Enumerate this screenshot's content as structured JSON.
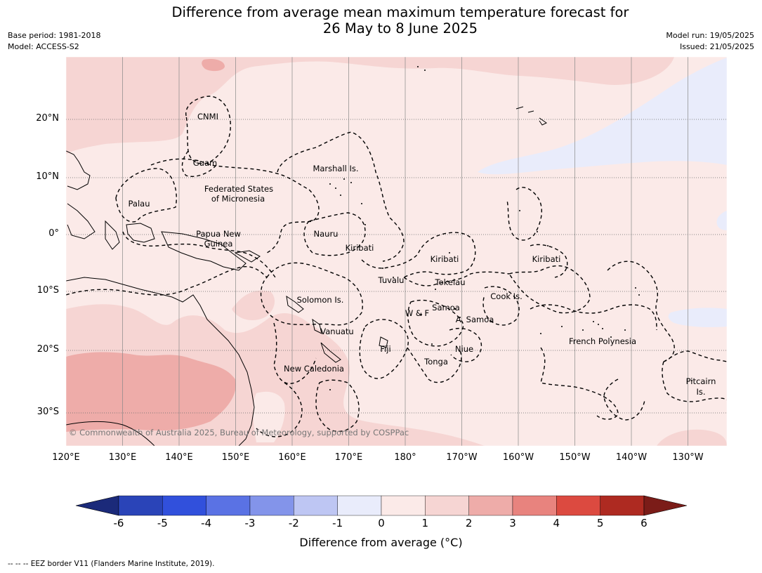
{
  "title": {
    "line1": "Difference from average mean maximum temperature forecast for",
    "line2": "26 May to 8 June 2025"
  },
  "meta_left": {
    "base_period": "Base period: 1981-2018",
    "model": "Model: ACCESS-S2"
  },
  "meta_right": {
    "model_run": "Model run: 19/05/2025",
    "issued": "Issued: 21/05/2025"
  },
  "map": {
    "lat_labels": [
      "20°N",
      "10°N",
      "0°",
      "10°S",
      "20°S",
      "30°S"
    ],
    "lon_labels": [
      "120°E",
      "130°E",
      "140°E",
      "150°E",
      "160°E",
      "170°E",
      "180°",
      "170°W",
      "160°W",
      "150°W",
      "140°W",
      "130°W"
    ],
    "places": [
      {
        "id": "cnmi",
        "text": "CNMI"
      },
      {
        "id": "guam",
        "text": "Guam"
      },
      {
        "id": "marshall",
        "text": "Marshall Is."
      },
      {
        "id": "fsm1",
        "text": "Federated States"
      },
      {
        "id": "fsm2",
        "text": "of Micronesia"
      },
      {
        "id": "palau",
        "text": "Palau"
      },
      {
        "id": "png1",
        "text": "Papua New"
      },
      {
        "id": "png2",
        "text": "Guinea"
      },
      {
        "id": "nauru",
        "text": "Nauru"
      },
      {
        "id": "kiribati1",
        "text": "Kiribati"
      },
      {
        "id": "kiribati2",
        "text": "Kiribati"
      },
      {
        "id": "kiribati3",
        "text": "Kiribati"
      },
      {
        "id": "tuvalu",
        "text": "Tuvalu"
      },
      {
        "id": "tokelau",
        "text": "Tokelau"
      },
      {
        "id": "solomon",
        "text": "Solomon Is."
      },
      {
        "id": "cook",
        "text": "Cook Is."
      },
      {
        "id": "samoa",
        "text": "Samoa"
      },
      {
        "id": "wf",
        "text": "W & F"
      },
      {
        "id": "asamoa",
        "text": "A. Samoa"
      },
      {
        "id": "vanuatu",
        "text": "Vanuatu"
      },
      {
        "id": "fiji",
        "text": "Fiji"
      },
      {
        "id": "niue",
        "text": "Niue"
      },
      {
        "id": "frpoly",
        "text": "French Polynesia"
      },
      {
        "id": "tonga",
        "text": "Tonga"
      },
      {
        "id": "newcal",
        "text": "New Caledonia"
      },
      {
        "id": "pitcairn1",
        "text": "Pitcairn"
      },
      {
        "id": "pitcairn2",
        "text": "Is."
      }
    ],
    "copyright": "© Commonwealth of Australia 2025, Bureau of Meteorology, supported by COSPPac"
  },
  "colorbar": {
    "ticks": [
      "-6",
      "-5",
      "-4",
      "-3",
      "-2",
      "-1",
      "0",
      "1",
      "2",
      "3",
      "4",
      "5",
      "6"
    ],
    "colors": [
      "#1b2a7a",
      "#2a44b8",
      "#3150dc",
      "#5a72e4",
      "#8394ea",
      "#bec6f3",
      "#e9ecfb",
      "#fbeae8",
      "#f6d5d3",
      "#eeaca9",
      "#e8837e",
      "#dc4a40",
      "#ae2a21",
      "#7b1c18"
    ],
    "label": "Difference from average (",
    "unit": "°C)"
  },
  "footer": "--  --  -- EEZ border V11 (Flanders Marine Institute, 2019)."
}
